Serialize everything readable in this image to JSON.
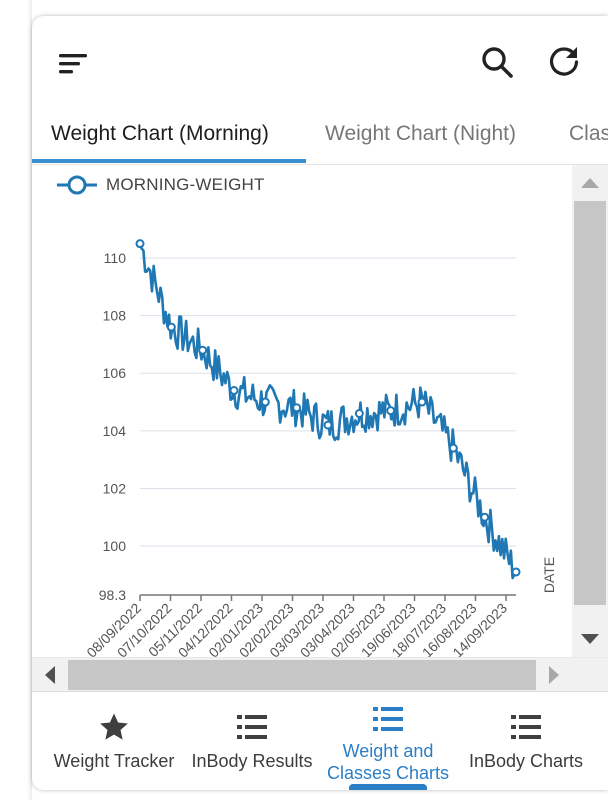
{
  "toolbar": {
    "menu_icon": "menu-lines-icon",
    "search_icon": "search-icon",
    "refresh_icon": "refresh-icon"
  },
  "tabs": [
    {
      "label": "Weight Chart (Morning)",
      "active": true
    },
    {
      "label": "Weight Chart (Night)",
      "active": false
    },
    {
      "label": "Classes",
      "active": false
    }
  ],
  "chart": {
    "legend": "MORNING-WEIGHT",
    "series_color": "#1f77b4"
  },
  "chart_data": {
    "type": "line",
    "series": [
      {
        "name": "MORNING-WEIGHT",
        "x": [
          "08/09/2022",
          "07/10/2022",
          "05/11/2022",
          "04/12/2022",
          "02/01/2023",
          "02/02/2023",
          "03/03/2023",
          "03/04/2023",
          "02/05/2023",
          "19/06/2023",
          "18/07/2023",
          "16/08/2023",
          "14/09/2023"
        ],
        "values": [
          110.5,
          107.6,
          106.8,
          105.4,
          105.0,
          104.8,
          104.2,
          104.6,
          104.7,
          105.0,
          103.4,
          101.0,
          99.1
        ]
      }
    ],
    "xlabel": "DATE",
    "ylabel": "",
    "y_ticks": [
      98.3,
      100,
      102,
      104,
      106,
      108,
      110
    ],
    "ylim": [
      98.3,
      110.8
    ],
    "grid": true,
    "legend_position": "top-left"
  },
  "nav": {
    "items": [
      {
        "label": "Weight Tracker",
        "icon": "star-icon"
      },
      {
        "label": "InBody Results",
        "icon": "list-icon"
      },
      {
        "label": "Weight and\nClasses Charts",
        "icon": "list-icon",
        "active": true
      },
      {
        "label": "InBody Charts",
        "icon": "list-icon"
      }
    ]
  },
  "colors": {
    "accent": "#2b7fc6",
    "tab_indicator": "#3c8fcf",
    "line": "#1f77b4"
  }
}
